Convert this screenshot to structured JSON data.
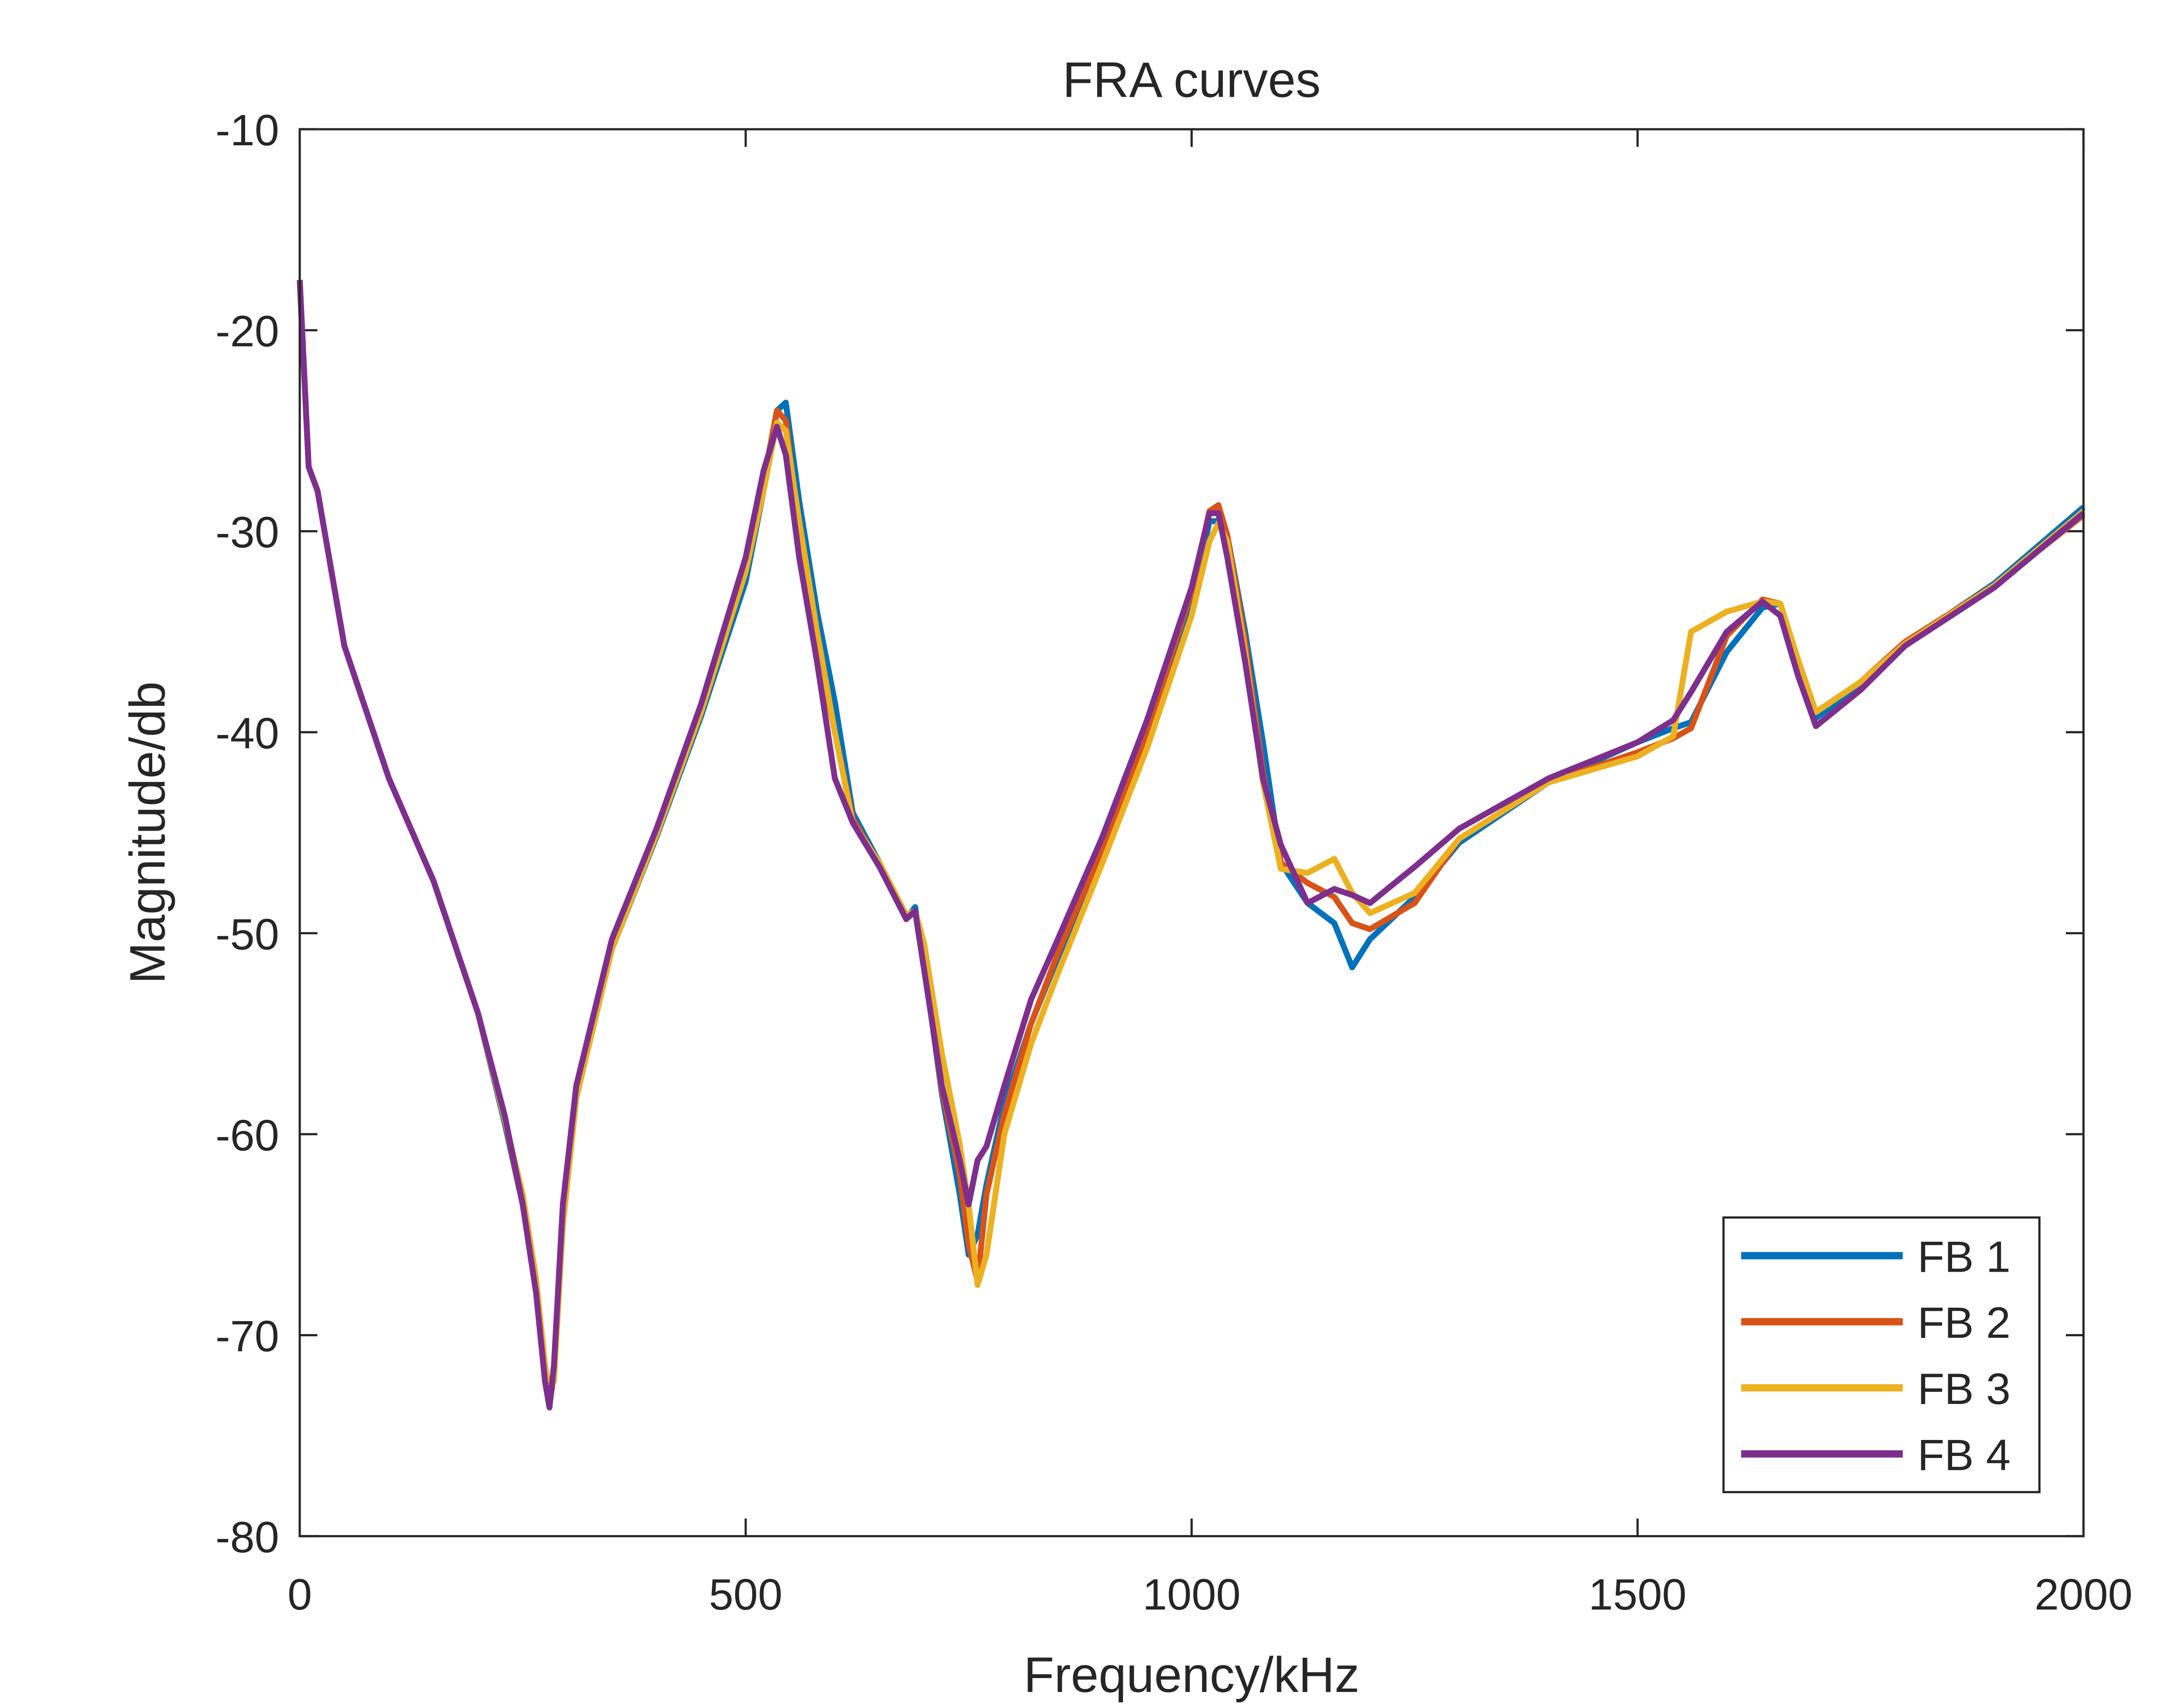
{
  "chart_data": {
    "type": "line",
    "title": "FRA curves",
    "x_label": "Frequency/kHz",
    "y_label": "Magnitude/db",
    "x": [
      0,
      10,
      20,
      50,
      100,
      150,
      200,
      230,
      250,
      265,
      275,
      280,
      285,
      295,
      310,
      350,
      400,
      450,
      500,
      520,
      535,
      545,
      560,
      580,
      600,
      620,
      650,
      680,
      690,
      700,
      720,
      740,
      750,
      760,
      770,
      790,
      820,
      850,
      900,
      950,
      1000,
      1020,
      1030,
      1040,
      1060,
      1080,
      1100,
      1130,
      1160,
      1180,
      1200,
      1250,
      1300,
      1400,
      1500,
      1540,
      1560,
      1600,
      1640,
      1660,
      1680,
      1700,
      1750,
      1800,
      1900,
      2000
    ],
    "series": [
      {
        "name": "FB 1",
        "color": "#0072BD",
        "values": [
          -17.5,
          -26.8,
          -28,
          -35.7,
          -42.3,
          -47.4,
          -54,
          -59.5,
          -63.5,
          -67.5,
          -72,
          -73.4,
          -72,
          -64.5,
          -58.2,
          -50.8,
          -45.2,
          -39.2,
          -32.5,
          -28,
          -24,
          -23.6,
          -28.5,
          -34,
          -38.5,
          -44,
          -46.5,
          -49.3,
          -48.7,
          -51.5,
          -58,
          -63,
          -66,
          -65,
          -62.5,
          -58.5,
          -54.5,
          -51.2,
          -46,
          -40.5,
          -33.8,
          -29.5,
          -29.5,
          -30.2,
          -35,
          -40.5,
          -46.5,
          -48.5,
          -49.5,
          -51.7,
          -50.3,
          -48.2,
          -45.5,
          -42.5,
          -40.5,
          -39.8,
          -39.5,
          -36,
          -33.8,
          -33.6,
          -36.5,
          -39.3,
          -37.6,
          -35.6,
          -32.6,
          -28.8
        ]
      },
      {
        "name": "FB 2",
        "color": "#D95319",
        "values": [
          -17.5,
          -26.8,
          -28,
          -35.7,
          -42.3,
          -47.4,
          -54,
          -59.3,
          -63.5,
          -67.7,
          -72.1,
          -73.5,
          -71.8,
          -64,
          -58,
          -50.6,
          -45,
          -39,
          -32,
          -27.5,
          -24,
          -24.5,
          -30,
          -35.5,
          -40,
          -44.3,
          -46.6,
          -49.3,
          -48.9,
          -51.6,
          -57.8,
          -62,
          -65.5,
          -67.3,
          -63,
          -59,
          -54.5,
          -51,
          -45.8,
          -40,
          -33,
          -29,
          -28.7,
          -30.2,
          -35.5,
          -42,
          -46.5,
          -47.5,
          -48.2,
          -49.5,
          -49.8,
          -48.5,
          -45.3,
          -42.5,
          -41,
          -40.3,
          -39.8,
          -35.2,
          -33.4,
          -33.6,
          -36.5,
          -39,
          -37.5,
          -35.5,
          -32.7,
          -29.2
        ]
      },
      {
        "name": "FB 3",
        "color": "#EDB120",
        "values": [
          -17.5,
          -26.8,
          -28,
          -35.7,
          -42.3,
          -47.4,
          -54,
          -59.3,
          -63,
          -67.2,
          -71.5,
          -72.8,
          -72.3,
          -64.5,
          -58.2,
          -50.8,
          -45.1,
          -39,
          -32,
          -28,
          -24.6,
          -25,
          -29.5,
          -35,
          -40,
          -44.5,
          -46.5,
          -49.1,
          -48.9,
          -50.5,
          -56,
          -60.5,
          -63.5,
          -67.5,
          -66,
          -60,
          -55.5,
          -52,
          -46.5,
          -40.8,
          -34.2,
          -30.5,
          -29.6,
          -30.5,
          -36,
          -42.5,
          -46.8,
          -47,
          -46.3,
          -48,
          -49,
          -48,
          -45.3,
          -42.5,
          -41.2,
          -40.2,
          -35,
          -34,
          -33.5,
          -33.6,
          -36.4,
          -39,
          -37.5,
          -35.6,
          -32.7,
          -29
        ]
      },
      {
        "name": "FB 4",
        "color": "#7E2F8E",
        "values": [
          -17.5,
          -26.8,
          -28,
          -35.7,
          -42.3,
          -47.4,
          -54,
          -59.1,
          -63.5,
          -67.9,
          -72.3,
          -73.6,
          -71.5,
          -63.5,
          -57.6,
          -50.3,
          -44.8,
          -38.6,
          -31.3,
          -27,
          -24.8,
          -26.2,
          -31.3,
          -36.5,
          -42.3,
          -44.5,
          -46.7,
          -49.3,
          -48.9,
          -51.8,
          -57.6,
          -61.3,
          -63.5,
          -61.3,
          -60.6,
          -57.6,
          -53.3,
          -50.3,
          -45.2,
          -39.4,
          -32.8,
          -29.1,
          -29.1,
          -31.3,
          -36.5,
          -42.3,
          -45.6,
          -48.5,
          -47.8,
          -48.1,
          -48.5,
          -46.7,
          -44.8,
          -42.3,
          -40.5,
          -39.4,
          -38,
          -35,
          -33.5,
          -34.2,
          -37.2,
          -39.7,
          -37.9,
          -35.7,
          -32.8,
          -29.1
        ]
      }
    ],
    "xlim": [
      0,
      2000
    ],
    "xticks": [
      0,
      500,
      1000,
      1500,
      2000
    ],
    "ylim": [
      -80,
      -10
    ],
    "yticks": [
      -80,
      -70,
      -60,
      -50,
      -40,
      -30,
      -20,
      -10
    ],
    "legend": "lower right"
  }
}
